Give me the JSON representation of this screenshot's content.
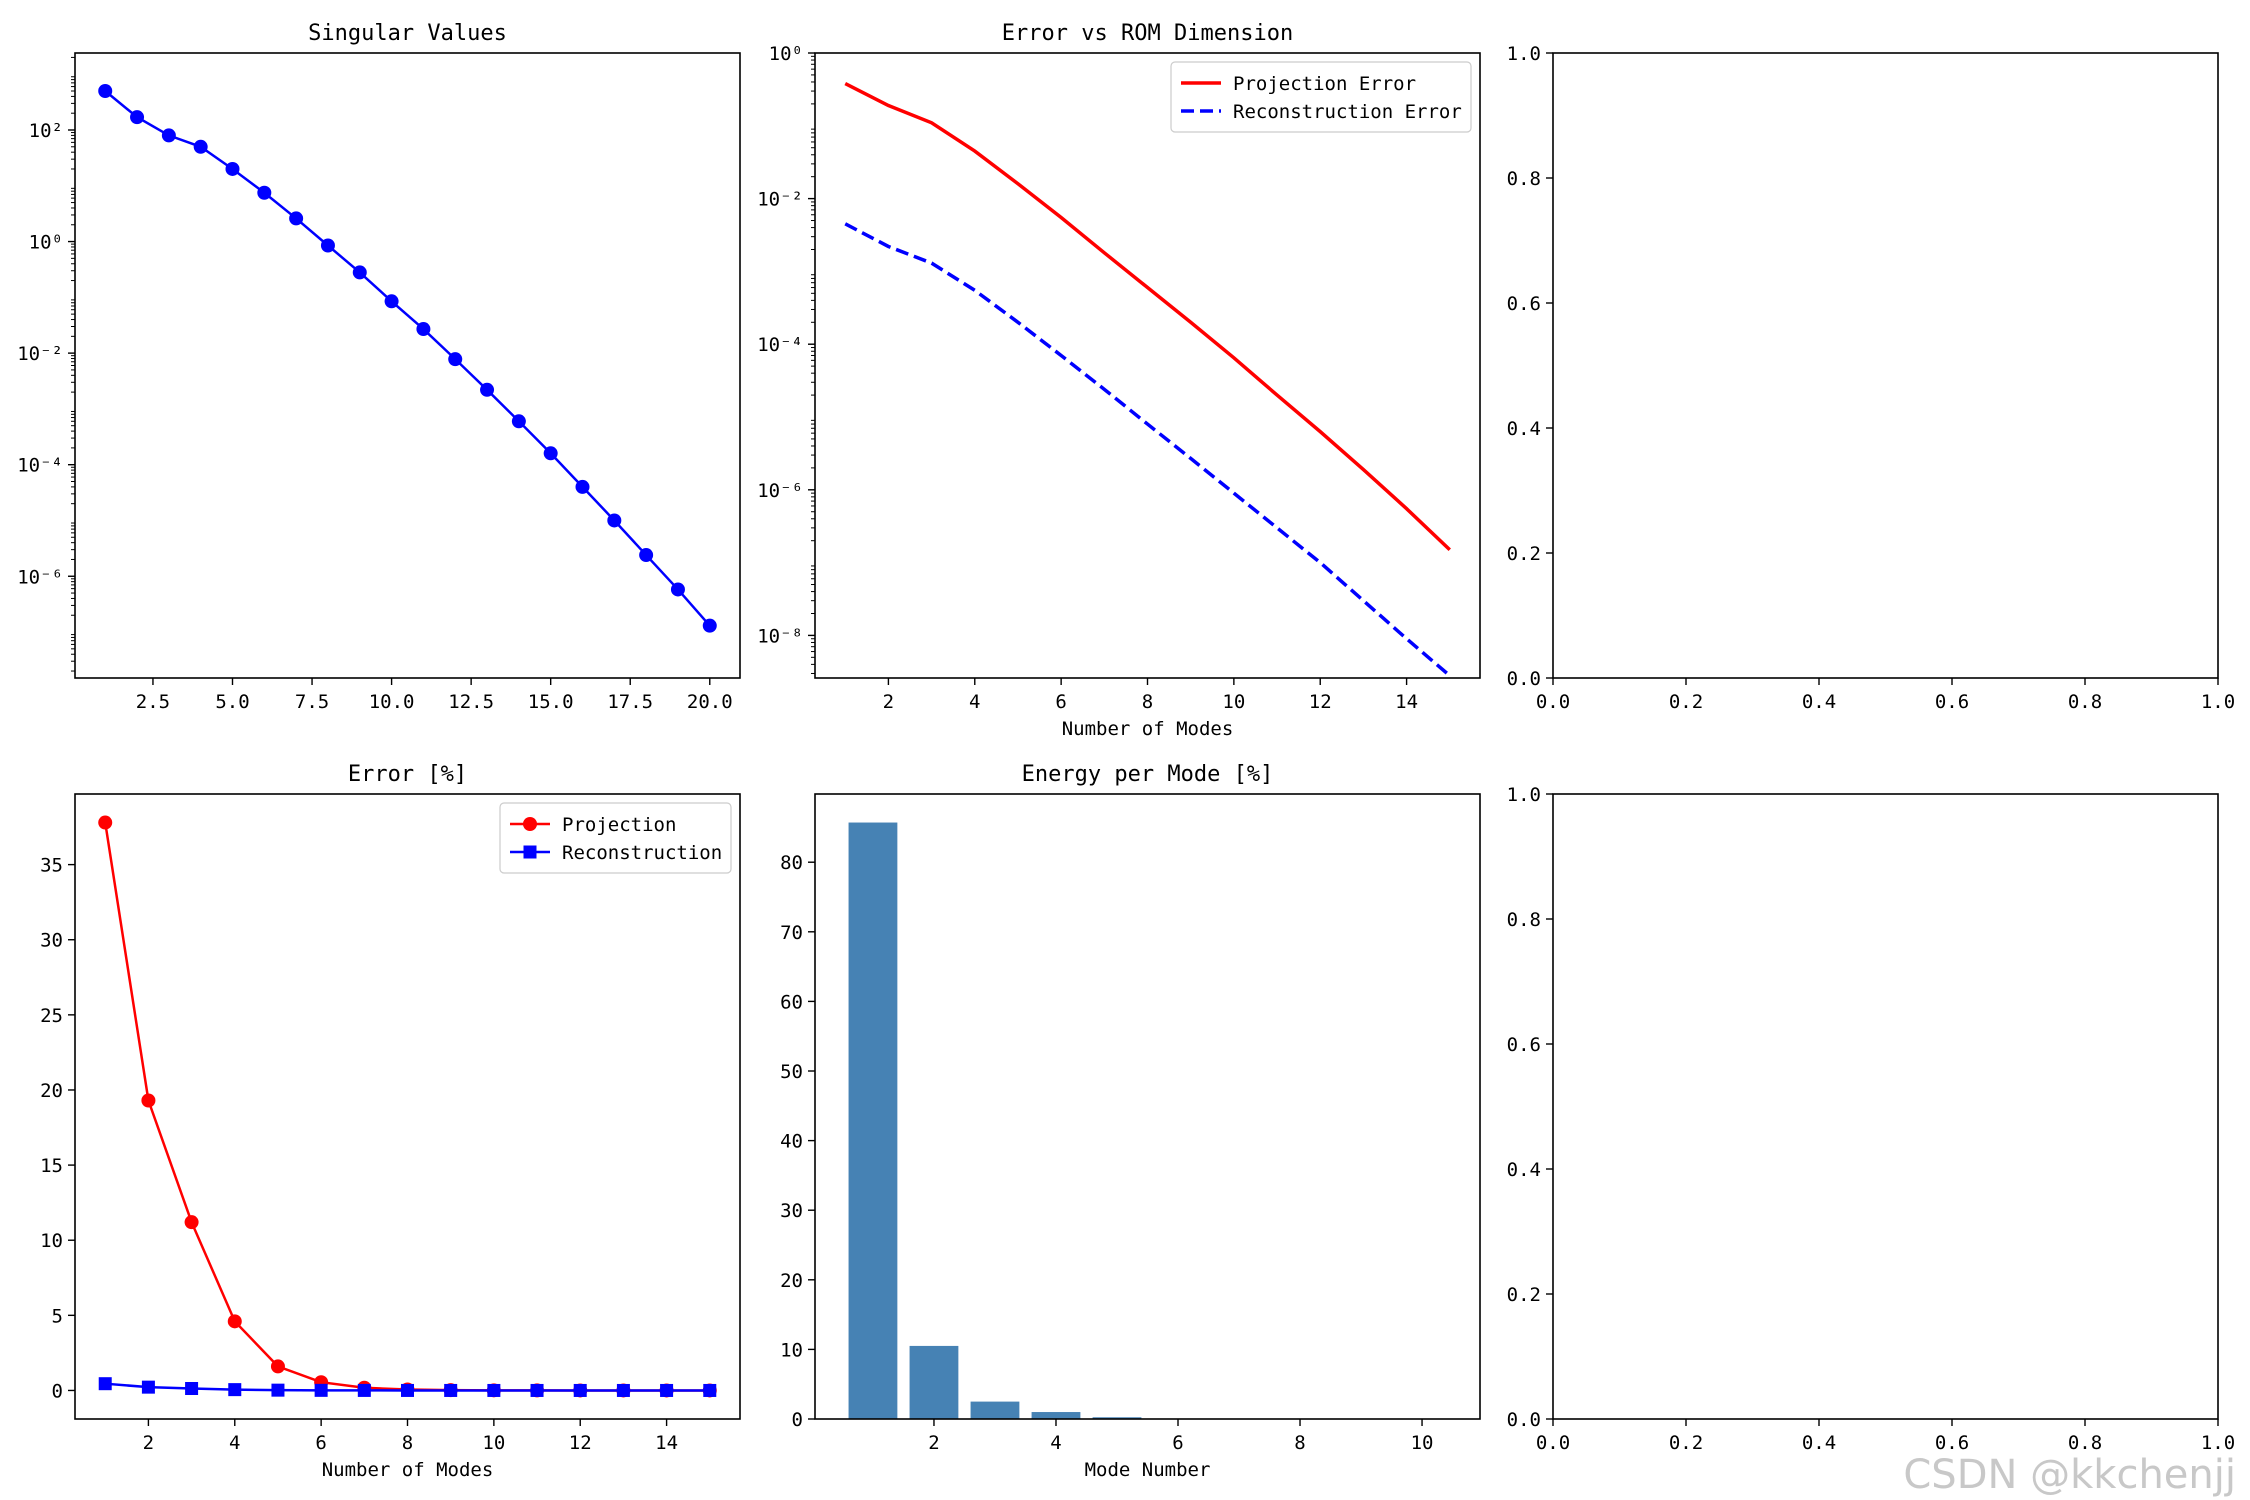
{
  "chart_data": [
    {
      "type": "line",
      "title": "Singular Values",
      "xlabel": "",
      "ylabel": "",
      "yscale": "log",
      "xlim": [
        0.05,
        20.95
      ],
      "ylim": [
        1.5e-08,
        2400
      ],
      "xticks": [
        2.5,
        5.0,
        7.5,
        10.0,
        12.5,
        15.0,
        17.5,
        20.0
      ],
      "xticklabels": [
        "2.5",
        "5.0",
        "7.5",
        "10.0",
        "12.5",
        "15.0",
        "17.5",
        "20.0"
      ],
      "yticks": [
        100,
        1,
        0.01,
        0.0001,
        1e-06
      ],
      "yticklabels": [
        "10²",
        "10⁰",
        "10⁻²",
        "10⁻⁴",
        "10⁻⁶"
      ],
      "grid": false,
      "series": [
        {
          "color": "#0000ff",
          "marker": "circle",
          "x": [
            1,
            2,
            3,
            4,
            5,
            6,
            7,
            8,
            9,
            10,
            11,
            12,
            13,
            14,
            15,
            16,
            17,
            18,
            19,
            20
          ],
          "values": [
            500,
            170,
            80,
            50,
            20,
            7.5,
            2.6,
            0.85,
            0.28,
            0.085,
            0.027,
            0.0078,
            0.0022,
            0.0006,
            0.00016,
            4e-05,
            1e-05,
            2.4e-06,
            5.8e-07,
            1.3e-07
          ]
        }
      ]
    },
    {
      "type": "line",
      "title": "Error vs ROM Dimension",
      "xlabel": "Number of Modes",
      "ylabel": "",
      "yscale": "log",
      "xlim": [
        0.3,
        15.7
      ],
      "ylim": [
        2.6e-09,
        1
      ],
      "xticks": [
        2,
        4,
        6,
        8,
        10,
        12,
        14
      ],
      "xticklabels": [
        "2",
        "4",
        "6",
        "8",
        "10",
        "12",
        "14"
      ],
      "yticks": [
        1,
        0.01,
        0.0001,
        1e-06,
        1e-08
      ],
      "yticklabels": [
        "10⁰",
        "10⁻²",
        "10⁻⁴",
        "10⁻⁶",
        "10⁻⁸"
      ],
      "grid": false,
      "legend_position": "top-right",
      "legend": [
        "Projection Error",
        "Reconstruction Error"
      ],
      "series": [
        {
          "name": "Projection Error",
          "color": "#ff0000",
          "style": "solid",
          "x": [
            1,
            2,
            3,
            4,
            5,
            6,
            7,
            8,
            9,
            10,
            11,
            12,
            13,
            14,
            15
          ],
          "values": [
            0.38,
            0.19,
            0.11,
            0.045,
            0.016,
            0.0055,
            0.0018,
            0.0006,
            0.0002,
            6.5e-05,
            2e-05,
            6.3e-06,
            1.9e-06,
            5.5e-07,
            1.5e-07
          ]
        },
        {
          "name": "Reconstruction Error",
          "color": "#0000ff",
          "style": "dashed",
          "x": [
            1,
            2,
            3,
            4,
            5,
            6,
            7,
            8,
            9,
            10,
            11,
            12,
            13,
            14,
            15
          ],
          "values": [
            0.0045,
            0.0022,
            0.0013,
            0.00055,
            0.0002,
            7e-05,
            2.4e-05,
            8e-06,
            2.7e-06,
            9e-07,
            3e-07,
            1e-07,
            3e-08,
            9e-09,
            2.8e-09
          ]
        }
      ]
    },
    {
      "type": "line",
      "title": "",
      "xlim": [
        0,
        1
      ],
      "ylim": [
        0,
        1
      ],
      "xticks": [
        0,
        0.2,
        0.4,
        0.6,
        0.8,
        1.0
      ],
      "xticklabels": [
        "0.0",
        "0.2",
        "0.4",
        "0.6",
        "0.8",
        "1.0"
      ],
      "yticks": [
        0,
        0.2,
        0.4,
        0.6,
        0.8,
        1.0
      ],
      "yticklabels": [
        "0.0",
        "0.2",
        "0.4",
        "0.6",
        "0.8",
        "1.0"
      ],
      "grid": false,
      "series": []
    },
    {
      "type": "line",
      "title": "Error [%]",
      "xlabel": "Number of Modes",
      "ylabel": "",
      "xlim": [
        0.3,
        15.7
      ],
      "ylim": [
        -1.9,
        39.7
      ],
      "xticks": [
        2,
        4,
        6,
        8,
        10,
        12,
        14
      ],
      "xticklabels": [
        "2",
        "4",
        "6",
        "8",
        "10",
        "12",
        "14"
      ],
      "yticks": [
        0,
        5,
        10,
        15,
        20,
        25,
        30,
        35
      ],
      "yticklabels": [
        "0",
        "5",
        "10",
        "15",
        "20",
        "25",
        "30",
        "35"
      ],
      "grid": false,
      "legend_position": "top-right",
      "legend": [
        "Projection",
        "Reconstruction"
      ],
      "series": [
        {
          "name": "Projection",
          "color": "#ff0000",
          "marker": "circle",
          "x": [
            1,
            2,
            3,
            4,
            5,
            6,
            7,
            8,
            9,
            10,
            11,
            12,
            13,
            14,
            15
          ],
          "values": [
            37.8,
            19.3,
            11.2,
            4.6,
            1.6,
            0.55,
            0.18,
            0.06,
            0.02,
            0.0065,
            0.002,
            0.0006,
            0.0002,
            5e-05,
            1.5e-05
          ]
        },
        {
          "name": "Reconstruction",
          "color": "#0000ff",
          "marker": "square",
          "x": [
            1,
            2,
            3,
            4,
            5,
            6,
            7,
            8,
            9,
            10,
            11,
            12,
            13,
            14,
            15
          ],
          "values": [
            0.45,
            0.22,
            0.13,
            0.055,
            0.02,
            0.007,
            0.0024,
            0.0008,
            0.00027,
            9e-05,
            3e-05,
            1e-05,
            3e-06,
            9e-07,
            2.8e-07
          ]
        }
      ]
    },
    {
      "type": "bar",
      "title": "Energy per Mode [%]",
      "xlabel": "Mode Number",
      "ylabel": "",
      "xlim": [
        0.05,
        10.95
      ],
      "ylim": [
        0,
        89.8
      ],
      "xticks": [
        2,
        4,
        6,
        8,
        10
      ],
      "xticklabels": [
        "2",
        "4",
        "6",
        "8",
        "10"
      ],
      "yticks": [
        0,
        10,
        20,
        30,
        40,
        50,
        60,
        70,
        80
      ],
      "yticklabels": [
        "0",
        "10",
        "20",
        "30",
        "40",
        "50",
        "60",
        "70",
        "80"
      ],
      "grid": false,
      "bar_color": "#4682b4",
      "categories": [
        1,
        2,
        3,
        4,
        5,
        6,
        7,
        8,
        9,
        10
      ],
      "values": [
        85.7,
        10.5,
        2.5,
        1.0,
        0.25,
        0.04,
        0.01,
        0.002,
        0.0005,
        0.0001
      ]
    },
    {
      "type": "line",
      "title": "",
      "xlim": [
        0,
        1
      ],
      "ylim": [
        0,
        1
      ],
      "xticks": [
        0,
        0.2,
        0.4,
        0.6,
        0.8,
        1.0
      ],
      "xticklabels": [
        "0.0",
        "0.2",
        "0.4",
        "0.6",
        "0.8",
        "1.0"
      ],
      "yticks": [
        0,
        0.2,
        0.4,
        0.6,
        0.8,
        1.0
      ],
      "yticklabels": [
        "0.0",
        "0.2",
        "0.4",
        "0.6",
        "0.8",
        "1.0"
      ],
      "grid": false,
      "series": []
    }
  ],
  "watermark": "CSDN @kkchenjj"
}
